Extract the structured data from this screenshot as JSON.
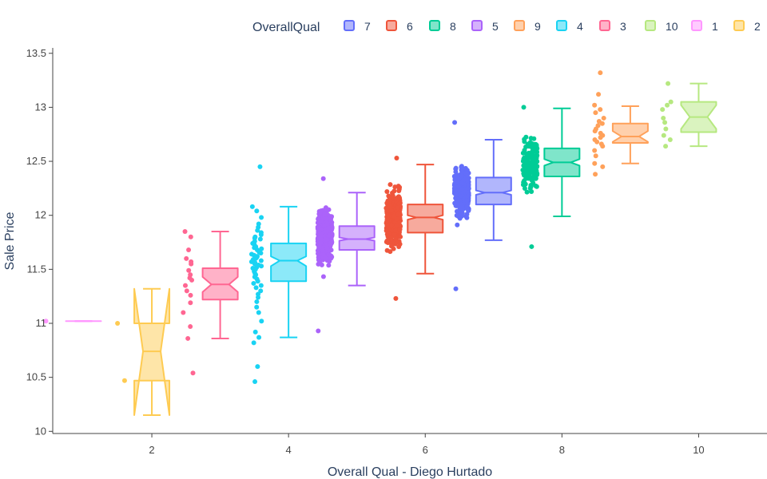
{
  "chart_data": {
    "type": "box",
    "title": "",
    "xlabel": "Overall Qual - Diego Hurtado",
    "ylabel": "Sale Price",
    "xlim": [
      0.55,
      11.0
    ],
    "ylim": [
      9.98,
      13.55
    ],
    "x_ticks": [
      2,
      4,
      6,
      8,
      10
    ],
    "y_ticks": [
      10,
      10.5,
      11,
      11.5,
      12,
      12.5,
      13,
      13.5
    ],
    "y_tick_labels": [
      "10",
      "10.5",
      "11",
      "11.5",
      "12",
      "12.5",
      "13",
      "13.5"
    ],
    "grid": false,
    "boxpoints": "all",
    "notched": true,
    "legend": {
      "title": "OverallQual",
      "placement": "top",
      "order": [
        "7",
        "6",
        "8",
        "5",
        "9",
        "4",
        "3",
        "10",
        "1",
        "2"
      ]
    },
    "series": [
      {
        "name": "1",
        "x": 1,
        "color": "#ff97ff",
        "q1": 11.02,
        "median": 11.02,
        "q3": 11.02,
        "lowerfence": 11.02,
        "upperfence": 11.02,
        "notch": [
          11.02,
          11.02
        ],
        "points": [
          11.02
        ]
      },
      {
        "name": "2",
        "x": 2,
        "color": "#fecb52",
        "q1": 10.47,
        "median": 10.74,
        "q3": 11.0,
        "lowerfence": 10.15,
        "upperfence": 11.32,
        "notch": [
          10.15,
          11.32
        ],
        "points": [
          10.47,
          11.0
        ]
      },
      {
        "name": "3",
        "x": 3,
        "color": "#ff6692",
        "q1": 11.22,
        "median": 11.36,
        "q3": 11.51,
        "lowerfence": 10.86,
        "upperfence": 11.85,
        "notch": [
          11.29,
          11.43
        ],
        "points": [
          11.85,
          11.8,
          11.68,
          11.6,
          11.57,
          11.55,
          11.49,
          11.45,
          11.42,
          11.4,
          11.35,
          11.3,
          11.26,
          11.19,
          11.1,
          10.97,
          10.86,
          10.54
        ]
      },
      {
        "name": "4",
        "x": 4,
        "color": "#19d3f3",
        "q1": 11.39,
        "median": 11.58,
        "q3": 11.74,
        "lowerfence": 10.87,
        "upperfence": 12.08,
        "notch": [
          11.53,
          11.62
        ],
        "points": [
          12.45,
          12.08,
          12.04,
          11.98,
          11.92,
          11.89,
          11.86,
          11.84,
          11.82,
          11.8,
          11.79,
          11.78,
          11.76,
          11.74,
          11.73,
          11.71,
          11.7,
          11.69,
          11.68,
          11.66,
          11.65,
          11.64,
          11.63,
          11.62,
          11.61,
          11.6,
          11.59,
          11.58,
          11.57,
          11.56,
          11.55,
          11.54,
          11.53,
          11.52,
          11.51,
          11.5,
          11.48,
          11.46,
          11.45,
          11.43,
          11.41,
          11.39,
          11.37,
          11.35,
          11.33,
          11.3,
          11.27,
          11.24,
          11.2,
          11.15,
          11.1,
          11.02,
          10.92,
          10.87,
          10.82,
          10.6,
          10.46
        ]
      },
      {
        "name": "5",
        "x": 5,
        "color": "#ab63fa",
        "q1": 11.68,
        "median": 11.78,
        "q3": 11.9,
        "lowerfence": 11.35,
        "upperfence": 12.21,
        "notch": [
          11.765,
          11.795
        ],
        "point_stats": {
          "n": 397,
          "center": 11.8,
          "spread": 0.17,
          "min": 10.93,
          "max": 12.34
        }
      },
      {
        "name": "6",
        "x": 6,
        "color": "#ef553b",
        "q1": 11.84,
        "median": 11.98,
        "q3": 12.1,
        "lowerfence": 11.46,
        "upperfence": 12.47,
        "notch": [
          11.96,
          12.0
        ],
        "point_stats": {
          "n": 374,
          "center": 11.97,
          "spread": 0.2,
          "min": 11.23,
          "max": 12.53
        }
      },
      {
        "name": "7",
        "x": 7,
        "color": "#636efa",
        "q1": 12.1,
        "median": 12.21,
        "q3": 12.35,
        "lowerfence": 11.77,
        "upperfence": 12.7,
        "notch": [
          12.19,
          12.23
        ],
        "point_stats": {
          "n": 319,
          "center": 12.22,
          "spread": 0.17,
          "min": 11.32,
          "max": 12.86
        }
      },
      {
        "name": "8",
        "x": 8,
        "color": "#00cc96",
        "q1": 12.36,
        "median": 12.49,
        "q3": 12.62,
        "lowerfence": 11.99,
        "upperfence": 12.99,
        "notch": [
          12.46,
          12.52
        ],
        "point_stats": {
          "n": 168,
          "center": 12.48,
          "spread": 0.19,
          "min": 11.71,
          "max": 13.0
        }
      },
      {
        "name": "9",
        "x": 9,
        "color": "#ffa15a",
        "q1": 12.67,
        "median": 12.73,
        "q3": 12.85,
        "lowerfence": 12.48,
        "upperfence": 13.01,
        "notch": [
          12.68,
          12.78
        ],
        "points": [
          13.32,
          13.12,
          13.02,
          12.98,
          12.95,
          12.9,
          12.87,
          12.85,
          12.83,
          12.8,
          12.78,
          12.76,
          12.74,
          12.72,
          12.7,
          12.68,
          12.66,
          12.64,
          12.6,
          12.55,
          12.48,
          12.45,
          12.38
        ]
      },
      {
        "name": "10",
        "x": 10,
        "color": "#b6e880",
        "q1": 12.77,
        "median": 12.91,
        "q3": 13.05,
        "lowerfence": 12.64,
        "upperfence": 13.22,
        "notch": [
          12.8,
          13.02
        ],
        "points": [
          13.22,
          13.05,
          13.02,
          12.98,
          12.9,
          12.86,
          12.8,
          12.74,
          12.7,
          12.64
        ]
      }
    ]
  }
}
